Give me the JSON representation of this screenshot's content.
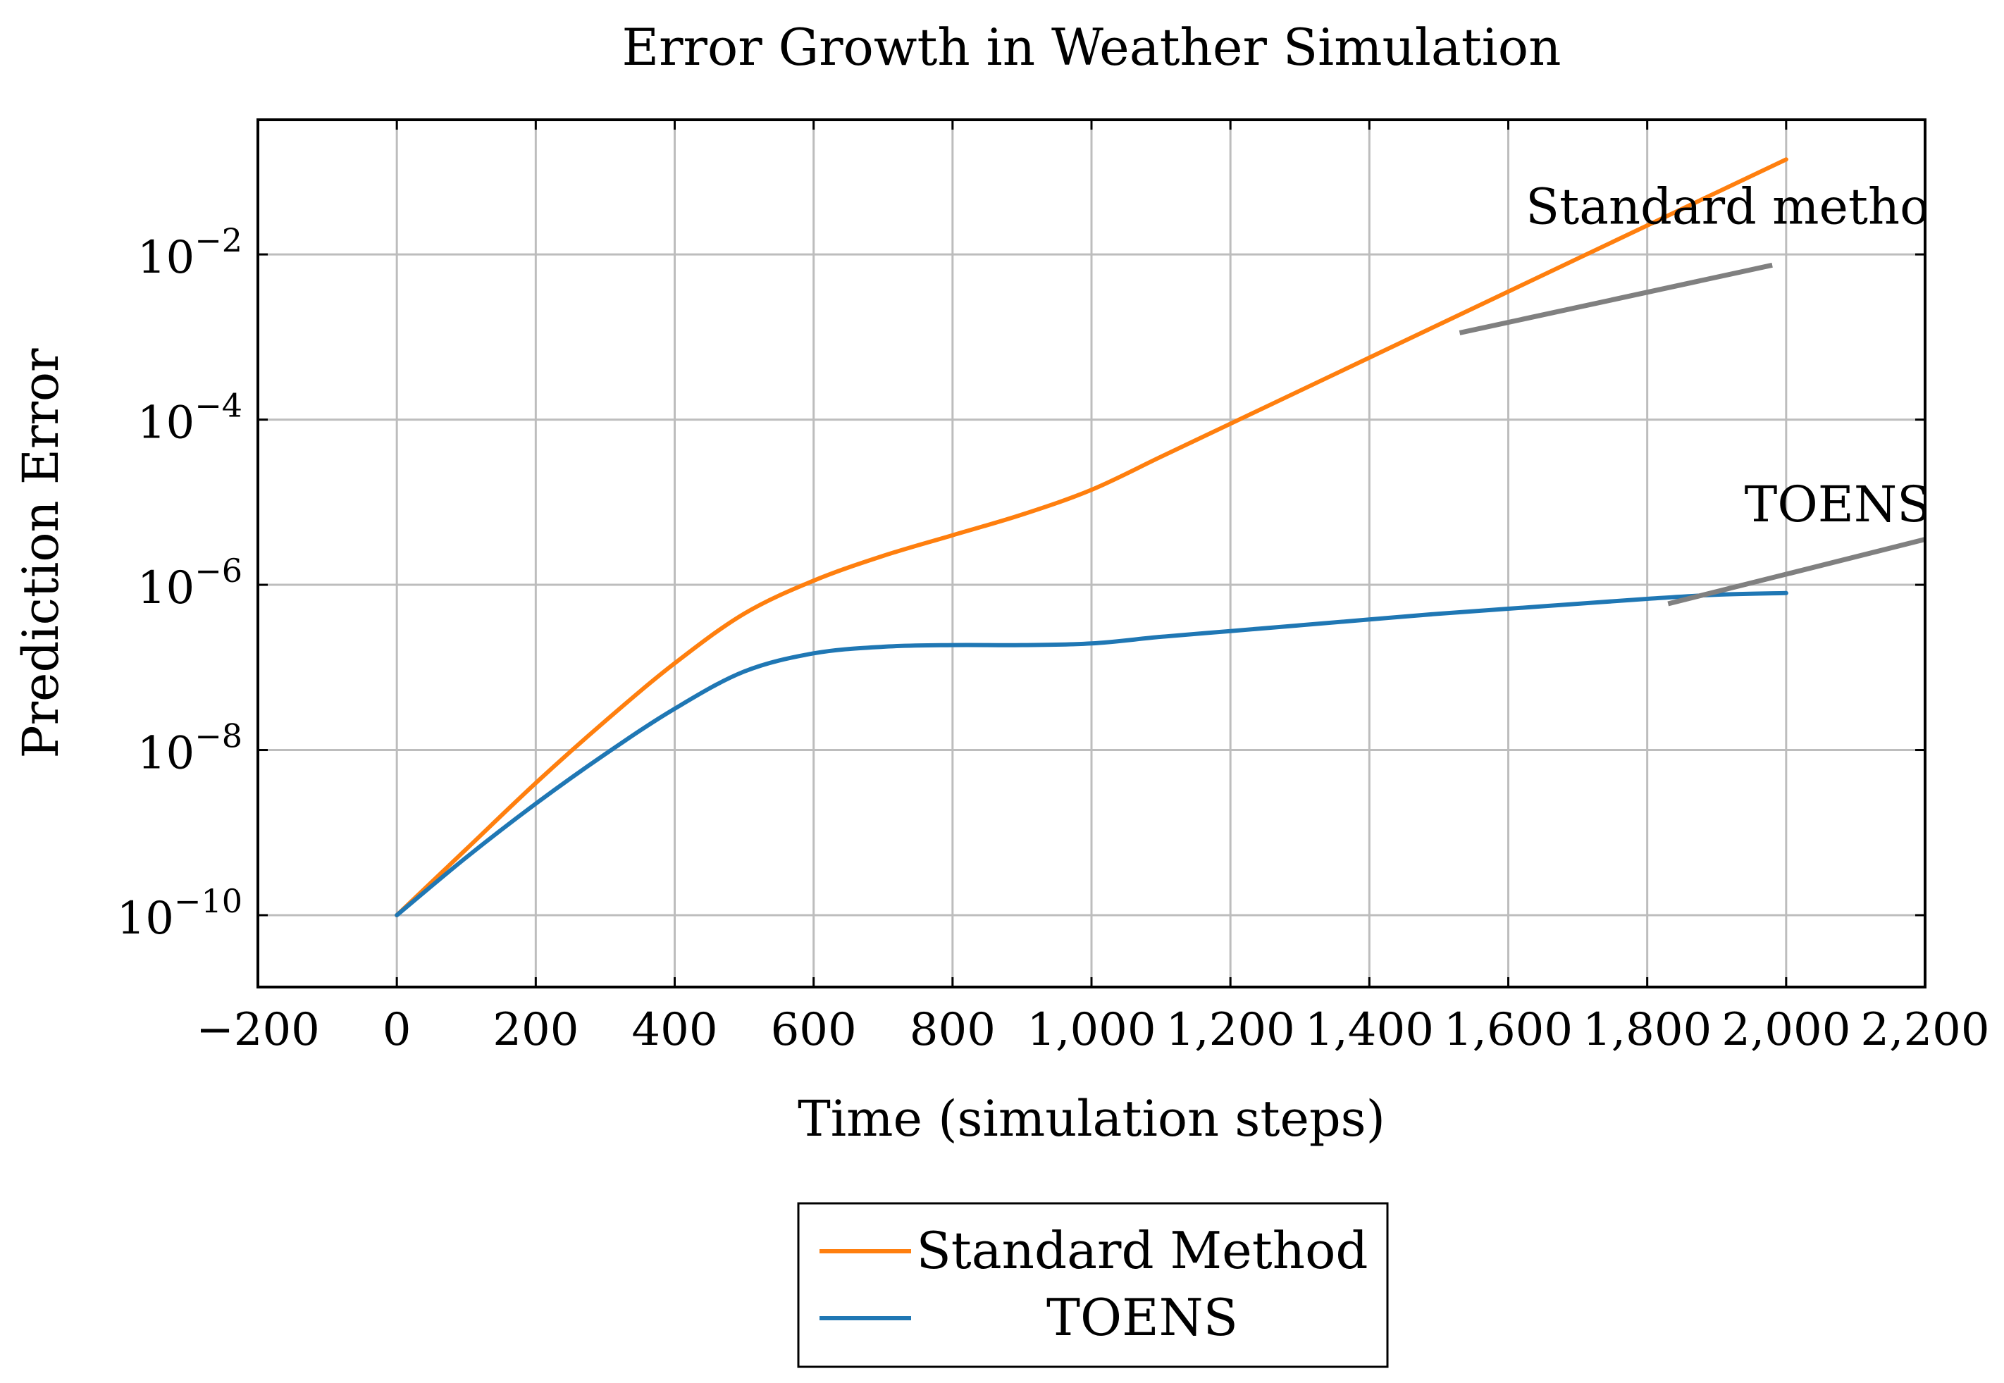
{
  "chart_data": {
    "type": "line",
    "title": "Error Growth in Weather Simulation",
    "xlabel": "Time (simulation steps)",
    "ylabel": "Prediction Error",
    "xlim": [
      -200,
      2200
    ],
    "ylim_log10": [
      -10.87,
      -0.37
    ],
    "yscale": "log",
    "grid": true,
    "x_ticks": [
      -200,
      0,
      200,
      400,
      600,
      800,
      1000,
      1200,
      1400,
      1600,
      1800,
      2000,
      2200
    ],
    "x_tick_labels": [
      "−200",
      "0",
      "200",
      "400",
      "600",
      "800",
      "1,000",
      "1,200",
      "1,400",
      "1,600",
      "1,800",
      "2,000",
      "2,200"
    ],
    "y_ticks_log10": [
      -10,
      -8,
      -6,
      -4,
      -2
    ],
    "y_tick_labels": [
      {
        "base": "10",
        "exp": "−10"
      },
      {
        "base": "10",
        "exp": "−8"
      },
      {
        "base": "10",
        "exp": "−6"
      },
      {
        "base": "10",
        "exp": "−4"
      },
      {
        "base": "10",
        "exp": "−2"
      }
    ],
    "series": [
      {
        "name": "Standard Method",
        "color": "#ff7f0e",
        "x": [
          0,
          100,
          200,
          300,
          400,
          500,
          600,
          700,
          800,
          900,
          1000,
          1100,
          1200,
          1300,
          1400,
          1500,
          1600,
          1700,
          1800,
          1900,
          2000
        ],
        "y_log10": [
          -10.0,
          -9.2,
          -8.4,
          -7.65,
          -6.95,
          -6.35,
          -5.95,
          -5.65,
          -5.4,
          -5.15,
          -4.85,
          -4.45,
          -4.05,
          -3.65,
          -3.25,
          -2.85,
          -2.45,
          -2.05,
          -1.65,
          -1.25,
          -0.85
        ]
      },
      {
        "name": "TOENS",
        "color": "#1f77b4",
        "x": [
          0,
          100,
          200,
          300,
          400,
          500,
          600,
          700,
          800,
          900,
          1000,
          1100,
          1200,
          1300,
          1400,
          1500,
          1600,
          1700,
          1800,
          1900,
          2000
        ],
        "y_log10": [
          -10.0,
          -9.3,
          -8.65,
          -8.05,
          -7.5,
          -7.05,
          -6.83,
          -6.75,
          -6.73,
          -6.73,
          -6.71,
          -6.63,
          -6.56,
          -6.49,
          -6.42,
          -6.35,
          -6.29,
          -6.23,
          -6.17,
          -6.12,
          -6.1
        ]
      }
    ],
    "annotations": [
      {
        "text": "Standard method",
        "color": "#808080",
        "line_x": [
          1530,
          1980
        ],
        "line_y_log10": [
          -2.95,
          -2.13
        ],
        "text_x": 1625,
        "text_y_log10": -1.63
      },
      {
        "text": "TOENS",
        "color": "#808080",
        "line_x": [
          1830,
          2200
        ],
        "line_y_log10": [
          -6.23,
          -5.45
        ],
        "text_x": 1940,
        "text_y_log10": -5.23
      }
    ],
    "legend": {
      "placement": "bottom-center",
      "entries": [
        "Standard Method",
        "TOENS"
      ]
    }
  }
}
